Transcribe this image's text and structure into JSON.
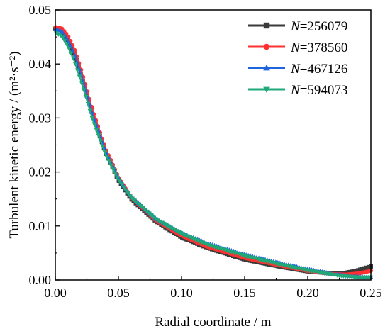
{
  "chart_data": {
    "type": "line",
    "xlabel": "Radial coordinate / m",
    "ylabel": "Turbulent kinetic energy / (m²·s⁻²)",
    "xlim": [
      0.0,
      0.25
    ],
    "ylim": [
      0.0,
      0.05
    ],
    "x_ticks": [
      "0.00",
      "0.05",
      "0.10",
      "0.15",
      "0.20",
      "0.25"
    ],
    "y_ticks": [
      "0.00",
      "0.01",
      "0.02",
      "0.03",
      "0.04",
      "0.05"
    ],
    "grid": false,
    "legend_position": "top-right",
    "series": [
      {
        "name": "N=256079",
        "legend_prefix": "N",
        "legend_value": "256079",
        "color": "#3a3a3a",
        "marker": "square",
        "x": [
          0.0,
          0.005,
          0.01,
          0.015,
          0.02,
          0.025,
          0.03,
          0.04,
          0.05,
          0.06,
          0.08,
          0.1,
          0.12,
          0.15,
          0.18,
          0.2,
          0.22,
          0.23,
          0.24,
          0.25
        ],
        "y": [
          0.0465,
          0.0462,
          0.0445,
          0.042,
          0.0383,
          0.0343,
          0.0302,
          0.0235,
          0.0185,
          0.015,
          0.0108,
          0.0079,
          0.006,
          0.0038,
          0.0024,
          0.0016,
          0.0012,
          0.0013,
          0.0018,
          0.0025
        ]
      },
      {
        "name": "N=378560",
        "legend_prefix": "N",
        "legend_value": "378560",
        "color": "#ff3030",
        "marker": "circle",
        "x": [
          0.0,
          0.005,
          0.01,
          0.015,
          0.02,
          0.025,
          0.03,
          0.04,
          0.05,
          0.06,
          0.08,
          0.1,
          0.12,
          0.15,
          0.18,
          0.2,
          0.22,
          0.23,
          0.24,
          0.25
        ],
        "y": [
          0.0468,
          0.0466,
          0.0452,
          0.0428,
          0.0392,
          0.0352,
          0.031,
          0.0242,
          0.019,
          0.0153,
          0.011,
          0.0082,
          0.0062,
          0.0041,
          0.0026,
          0.0017,
          0.0011,
          0.001,
          0.0012,
          0.0017
        ]
      },
      {
        "name": "N=467126",
        "legend_prefix": "N",
        "legend_value": "467126",
        "color": "#1e64dc",
        "marker": "triangle",
        "x": [
          0.0,
          0.005,
          0.01,
          0.015,
          0.02,
          0.025,
          0.03,
          0.04,
          0.05,
          0.06,
          0.08,
          0.1,
          0.12,
          0.15,
          0.18,
          0.2,
          0.22,
          0.23,
          0.24,
          0.25
        ],
        "y": [
          0.0464,
          0.0461,
          0.0444,
          0.0419,
          0.0383,
          0.0343,
          0.0302,
          0.0237,
          0.0188,
          0.0154,
          0.0113,
          0.0087,
          0.0068,
          0.0047,
          0.003,
          0.002,
          0.0011,
          0.0008,
          0.0006,
          0.0005
        ]
      },
      {
        "name": "N=594073",
        "legend_prefix": "N",
        "legend_value": "594073",
        "color": "#1fa878",
        "marker": "triangle-down",
        "x": [
          0.0,
          0.005,
          0.01,
          0.015,
          0.02,
          0.025,
          0.03,
          0.04,
          0.05,
          0.06,
          0.08,
          0.1,
          0.12,
          0.15,
          0.18,
          0.2,
          0.22,
          0.23,
          0.24,
          0.25
        ],
        "y": [
          0.0458,
          0.0452,
          0.0433,
          0.0406,
          0.0371,
          0.0333,
          0.0294,
          0.0232,
          0.0186,
          0.0153,
          0.0112,
          0.0086,
          0.0066,
          0.0045,
          0.0028,
          0.0018,
          0.001,
          0.0007,
          0.0005,
          0.0005
        ]
      }
    ]
  }
}
